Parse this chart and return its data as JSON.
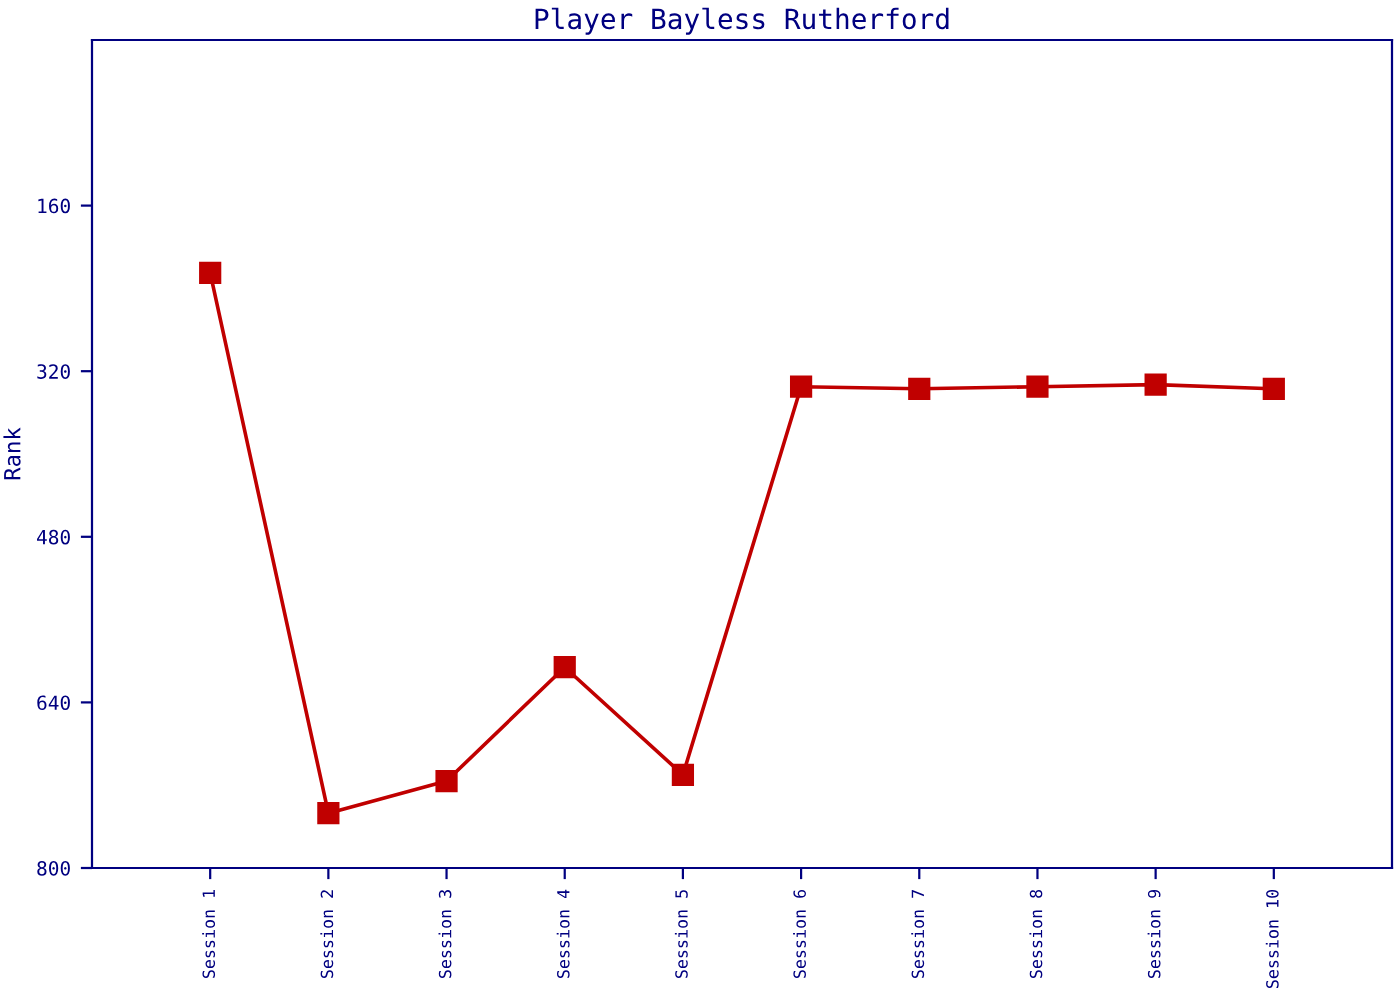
{
  "chart_data": {
    "type": "line",
    "title": "Player Bayless Rutherford",
    "ylabel": "Rank",
    "categories": [
      "Session 1",
      "Session 2",
      "Session 3",
      "Session 4",
      "Session 5",
      "Session 6",
      "Session 7",
      "Session 8",
      "Session 9",
      "Session 10"
    ],
    "series": [
      {
        "color": "#c00000",
        "values": [
          225,
          747,
          716,
          606,
          710,
          335,
          337,
          335,
          333,
          337
        ]
      }
    ],
    "ylim": [
      800,
      0
    ],
    "yticks": [
      160,
      320,
      480,
      640,
      800
    ],
    "marker": "square",
    "line_style": "solid",
    "grid": false,
    "legend": false
  }
}
